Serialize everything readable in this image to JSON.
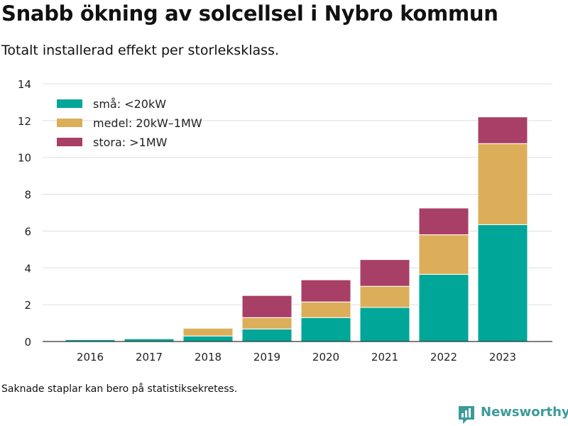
{
  "header": {
    "title": "Snabb ökning av solcellsel i Nybro kommun",
    "subtitle": "Totalt installerad effekt per storleksklass."
  },
  "footer": {
    "note": "Saknade staplar kan bero på statistiksekretess.",
    "brand": "Newsworthy"
  },
  "colors": {
    "small": "#00a698",
    "medium": "#dcae5a",
    "large": "#a83f67",
    "brand": "#3d9b98",
    "grid": "#dddddd",
    "axis": "#333333"
  },
  "chart_data": {
    "type": "bar",
    "stacked": true,
    "categories": [
      "2016",
      "2017",
      "2018",
      "2019",
      "2020",
      "2021",
      "2022",
      "2023"
    ],
    "series": [
      {
        "name": "små: <20kW",
        "color": "#00a698",
        "values": [
          0.1,
          0.15,
          0.3,
          0.68,
          1.3,
          1.85,
          3.65,
          6.35
        ]
      },
      {
        "name": "medel: 20kW–1MW",
        "color": "#dcae5a",
        "values": [
          0.0,
          0.03,
          0.42,
          0.62,
          0.85,
          1.15,
          2.15,
          4.4
        ]
      },
      {
        "name": "stora: >1MW",
        "color": "#a83f67",
        "values": [
          0.0,
          0.0,
          0.0,
          1.2,
          1.2,
          1.45,
          1.45,
          1.45
        ]
      }
    ],
    "yticks": [
      0,
      2,
      4,
      6,
      8,
      10,
      12,
      14
    ],
    "ylim": [
      0,
      14
    ],
    "grid": true,
    "legend_position": "top-left"
  }
}
